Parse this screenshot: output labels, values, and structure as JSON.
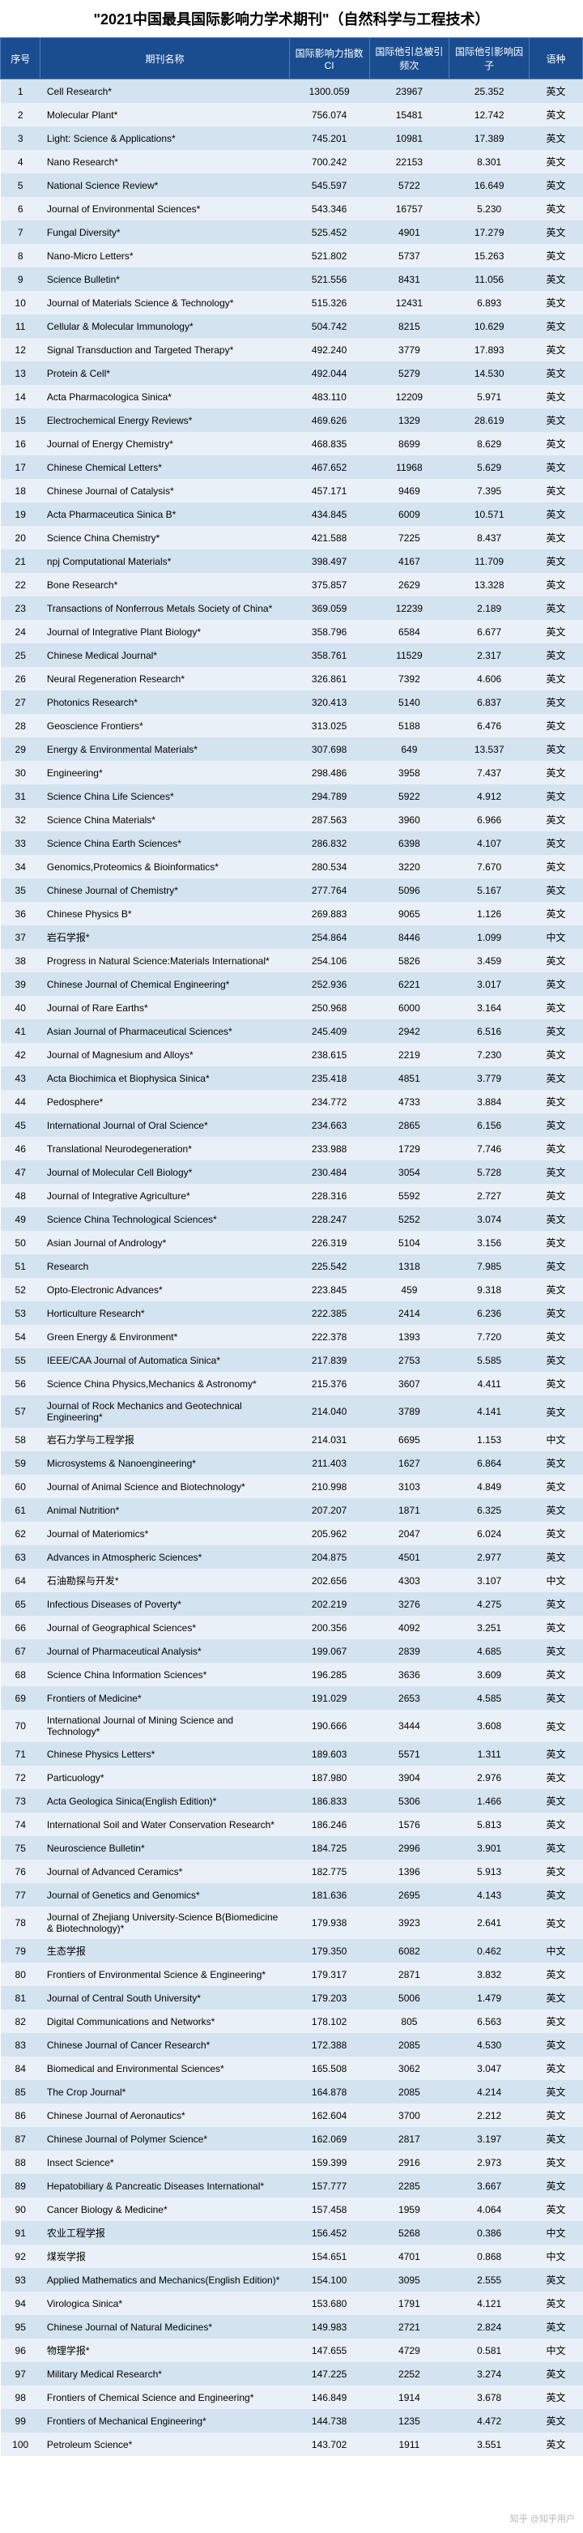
{
  "title": "\"2021中国最具国际影响力学术期刊\"（自然科学与工程技术）",
  "headers": {
    "idx": "序号",
    "name": "期刊名称",
    "ci": "国际影响力指数CI",
    "cited": "国际他引总被引频次",
    "if": "国际他引影响因子",
    "lang": "语种"
  },
  "watermark": "知乎 @知乎用户",
  "rows": [
    {
      "idx": 1,
      "name": "Cell Research*",
      "ci": "1300.059",
      "cited": "23967",
      "if": "25.352",
      "lang": "英文"
    },
    {
      "idx": 2,
      "name": "Molecular Plant*",
      "ci": "756.074",
      "cited": "15481",
      "if": "12.742",
      "lang": "英文"
    },
    {
      "idx": 3,
      "name": "Light: Science & Applications*",
      "ci": "745.201",
      "cited": "10981",
      "if": "17.389",
      "lang": "英文"
    },
    {
      "idx": 4,
      "name": "Nano Research*",
      "ci": "700.242",
      "cited": "22153",
      "if": "8.301",
      "lang": "英文"
    },
    {
      "idx": 5,
      "name": "National Science Review*",
      "ci": "545.597",
      "cited": "5722",
      "if": "16.649",
      "lang": "英文"
    },
    {
      "idx": 6,
      "name": "Journal of Environmental Sciences*",
      "ci": "543.346",
      "cited": "16757",
      "if": "5.230",
      "lang": "英文"
    },
    {
      "idx": 7,
      "name": "Fungal Diversity*",
      "ci": "525.452",
      "cited": "4901",
      "if": "17.279",
      "lang": "英文"
    },
    {
      "idx": 8,
      "name": "Nano-Micro Letters*",
      "ci": "521.802",
      "cited": "5737",
      "if": "15.263",
      "lang": "英文"
    },
    {
      "idx": 9,
      "name": "Science Bulletin*",
      "ci": "521.556",
      "cited": "8431",
      "if": "11.056",
      "lang": "英文"
    },
    {
      "idx": 10,
      "name": "Journal of Materials Science & Technology*",
      "ci": "515.326",
      "cited": "12431",
      "if": "6.893",
      "lang": "英文"
    },
    {
      "idx": 11,
      "name": "Cellular & Molecular Immunology*",
      "ci": "504.742",
      "cited": "8215",
      "if": "10.629",
      "lang": "英文"
    },
    {
      "idx": 12,
      "name": "Signal Transduction and Targeted Therapy*",
      "ci": "492.240",
      "cited": "3779",
      "if": "17.893",
      "lang": "英文"
    },
    {
      "idx": 13,
      "name": "Protein & Cell*",
      "ci": "492.044",
      "cited": "5279",
      "if": "14.530",
      "lang": "英文"
    },
    {
      "idx": 14,
      "name": "Acta Pharmacologica Sinica*",
      "ci": "483.110",
      "cited": "12209",
      "if": "5.971",
      "lang": "英文"
    },
    {
      "idx": 15,
      "name": "Electrochemical Energy Reviews*",
      "ci": "469.626",
      "cited": "1329",
      "if": "28.619",
      "lang": "英文"
    },
    {
      "idx": 16,
      "name": "Journal of Energy Chemistry*",
      "ci": "468.835",
      "cited": "8699",
      "if": "8.629",
      "lang": "英文"
    },
    {
      "idx": 17,
      "name": "Chinese Chemical Letters*",
      "ci": "467.652",
      "cited": "11968",
      "if": "5.629",
      "lang": "英文"
    },
    {
      "idx": 18,
      "name": "Chinese Journal of Catalysis*",
      "ci": "457.171",
      "cited": "9469",
      "if": "7.395",
      "lang": "英文"
    },
    {
      "idx": 19,
      "name": "Acta Pharmaceutica Sinica B*",
      "ci": "434.845",
      "cited": "6009",
      "if": "10.571",
      "lang": "英文"
    },
    {
      "idx": 20,
      "name": "Science China Chemistry*",
      "ci": "421.588",
      "cited": "7225",
      "if": "8.437",
      "lang": "英文"
    },
    {
      "idx": 21,
      "name": "npj Computational Materials*",
      "ci": "398.497",
      "cited": "4167",
      "if": "11.709",
      "lang": "英文"
    },
    {
      "idx": 22,
      "name": "Bone Research*",
      "ci": "375.857",
      "cited": "2629",
      "if": "13.328",
      "lang": "英文"
    },
    {
      "idx": 23,
      "name": "Transactions of Nonferrous Metals Society of China*",
      "ci": "369.059",
      "cited": "12239",
      "if": "2.189",
      "lang": "英文"
    },
    {
      "idx": 24,
      "name": "Journal of Integrative Plant Biology*",
      "ci": "358.796",
      "cited": "6584",
      "if": "6.677",
      "lang": "英文"
    },
    {
      "idx": 25,
      "name": "Chinese Medical Journal*",
      "ci": "358.761",
      "cited": "11529",
      "if": "2.317",
      "lang": "英文"
    },
    {
      "idx": 26,
      "name": "Neural Regeneration Research*",
      "ci": "326.861",
      "cited": "7392",
      "if": "4.606",
      "lang": "英文"
    },
    {
      "idx": 27,
      "name": "Photonics Research*",
      "ci": "320.413",
      "cited": "5140",
      "if": "6.837",
      "lang": "英文"
    },
    {
      "idx": 28,
      "name": "Geoscience Frontiers*",
      "ci": "313.025",
      "cited": "5188",
      "if": "6.476",
      "lang": "英文"
    },
    {
      "idx": 29,
      "name": "Energy & Environmental Materials*",
      "ci": "307.698",
      "cited": "649",
      "if": "13.537",
      "lang": "英文"
    },
    {
      "idx": 30,
      "name": "Engineering*",
      "ci": "298.486",
      "cited": "3958",
      "if": "7.437",
      "lang": "英文"
    },
    {
      "idx": 31,
      "name": "Science China Life Sciences*",
      "ci": "294.789",
      "cited": "5922",
      "if": "4.912",
      "lang": "英文"
    },
    {
      "idx": 32,
      "name": "Science China Materials*",
      "ci": "287.563",
      "cited": "3960",
      "if": "6.966",
      "lang": "英文"
    },
    {
      "idx": 33,
      "name": "Science China Earth Sciences*",
      "ci": "286.832",
      "cited": "6398",
      "if": "4.107",
      "lang": "英文"
    },
    {
      "idx": 34,
      "name": "Genomics,Proteomics & Bioinformatics*",
      "ci": "280.534",
      "cited": "3220",
      "if": "7.670",
      "lang": "英文"
    },
    {
      "idx": 35,
      "name": "Chinese Journal of Chemistry*",
      "ci": "277.764",
      "cited": "5096",
      "if": "5.167",
      "lang": "英文"
    },
    {
      "idx": 36,
      "name": "Chinese Physics B*",
      "ci": "269.883",
      "cited": "9065",
      "if": "1.126",
      "lang": "英文"
    },
    {
      "idx": 37,
      "name": "岩石学报*",
      "ci": "254.864",
      "cited": "8446",
      "if": "1.099",
      "lang": "中文"
    },
    {
      "idx": 38,
      "name": "Progress in Natural Science:Materials International*",
      "ci": "254.106",
      "cited": "5826",
      "if": "3.459",
      "lang": "英文"
    },
    {
      "idx": 39,
      "name": "Chinese Journal of Chemical Engineering*",
      "ci": "252.936",
      "cited": "6221",
      "if": "3.017",
      "lang": "英文"
    },
    {
      "idx": 40,
      "name": "Journal of Rare Earths*",
      "ci": "250.968",
      "cited": "6000",
      "if": "3.164",
      "lang": "英文"
    },
    {
      "idx": 41,
      "name": "Asian Journal of Pharmaceutical Sciences*",
      "ci": "245.409",
      "cited": "2942",
      "if": "6.516",
      "lang": "英文"
    },
    {
      "idx": 42,
      "name": "Journal of Magnesium and Alloys*",
      "ci": "238.615",
      "cited": "2219",
      "if": "7.230",
      "lang": "英文"
    },
    {
      "idx": 43,
      "name": "Acta Biochimica et Biophysica Sinica*",
      "ci": "235.418",
      "cited": "4851",
      "if": "3.779",
      "lang": "英文"
    },
    {
      "idx": 44,
      "name": "Pedosphere*",
      "ci": "234.772",
      "cited": "4733",
      "if": "3.884",
      "lang": "英文"
    },
    {
      "idx": 45,
      "name": "International Journal of Oral Science*",
      "ci": "234.663",
      "cited": "2865",
      "if": "6.156",
      "lang": "英文"
    },
    {
      "idx": 46,
      "name": "Translational Neurodegeneration*",
      "ci": "233.988",
      "cited": "1729",
      "if": "7.746",
      "lang": "英文"
    },
    {
      "idx": 47,
      "name": "Journal of Molecular Cell Biology*",
      "ci": "230.484",
      "cited": "3054",
      "if": "5.728",
      "lang": "英文"
    },
    {
      "idx": 48,
      "name": "Journal of Integrative Agriculture*",
      "ci": "228.316",
      "cited": "5592",
      "if": "2.727",
      "lang": "英文"
    },
    {
      "idx": 49,
      "name": "Science China Technological Sciences*",
      "ci": "228.247",
      "cited": "5252",
      "if": "3.074",
      "lang": "英文"
    },
    {
      "idx": 50,
      "name": "Asian Journal of Andrology*",
      "ci": "226.319",
      "cited": "5104",
      "if": "3.156",
      "lang": "英文"
    },
    {
      "idx": 51,
      "name": "Research",
      "ci": "225.542",
      "cited": "1318",
      "if": "7.985",
      "lang": "英文"
    },
    {
      "idx": 52,
      "name": "Opto-Electronic Advances*",
      "ci": "223.845",
      "cited": "459",
      "if": "9.318",
      "lang": "英文"
    },
    {
      "idx": 53,
      "name": "Horticulture Research*",
      "ci": "222.385",
      "cited": "2414",
      "if": "6.236",
      "lang": "英文"
    },
    {
      "idx": 54,
      "name": "Green Energy & Environment*",
      "ci": "222.378",
      "cited": "1393",
      "if": "7.720",
      "lang": "英文"
    },
    {
      "idx": 55,
      "name": "IEEE/CAA Journal of Automatica Sinica*",
      "ci": "217.839",
      "cited": "2753",
      "if": "5.585",
      "lang": "英文"
    },
    {
      "idx": 56,
      "name": "Science China Physics,Mechanics & Astronomy*",
      "ci": "215.376",
      "cited": "3607",
      "if": "4.411",
      "lang": "英文"
    },
    {
      "idx": 57,
      "name": "Journal of Rock Mechanics and Geotechnical Engineering*",
      "ci": "214.040",
      "cited": "3789",
      "if": "4.141",
      "lang": "英文"
    },
    {
      "idx": 58,
      "name": "岩石力学与工程学报",
      "ci": "214.031",
      "cited": "6695",
      "if": "1.153",
      "lang": "中文"
    },
    {
      "idx": 59,
      "name": "Microsystems & Nanoengineering*",
      "ci": "211.403",
      "cited": "1627",
      "if": "6.864",
      "lang": "英文"
    },
    {
      "idx": 60,
      "name": "Journal of Animal Science and Biotechnology*",
      "ci": "210.998",
      "cited": "3103",
      "if": "4.849",
      "lang": "英文"
    },
    {
      "idx": 61,
      "name": "Animal Nutrition*",
      "ci": "207.207",
      "cited": "1871",
      "if": "6.325",
      "lang": "英文"
    },
    {
      "idx": 62,
      "name": "Journal of Materiomics*",
      "ci": "205.962",
      "cited": "2047",
      "if": "6.024",
      "lang": "英文"
    },
    {
      "idx": 63,
      "name": "Advances in Atmospheric Sciences*",
      "ci": "204.875",
      "cited": "4501",
      "if": "2.977",
      "lang": "英文"
    },
    {
      "idx": 64,
      "name": "石油勘探与开发*",
      "ci": "202.656",
      "cited": "4303",
      "if": "3.107",
      "lang": "中文"
    },
    {
      "idx": 65,
      "name": "Infectious Diseases of Poverty*",
      "ci": "202.219",
      "cited": "3276",
      "if": "4.275",
      "lang": "英文"
    },
    {
      "idx": 66,
      "name": "Journal of Geographical Sciences*",
      "ci": "200.356",
      "cited": "4092",
      "if": "3.251",
      "lang": "英文"
    },
    {
      "idx": 67,
      "name": "Journal of Pharmaceutical Analysis*",
      "ci": "199.067",
      "cited": "2839",
      "if": "4.685",
      "lang": "英文"
    },
    {
      "idx": 68,
      "name": "Science China Information Sciences*",
      "ci": "196.285",
      "cited": "3636",
      "if": "3.609",
      "lang": "英文"
    },
    {
      "idx": 69,
      "name": "Frontiers of Medicine*",
      "ci": "191.029",
      "cited": "2653",
      "if": "4.585",
      "lang": "英文"
    },
    {
      "idx": 70,
      "name": "International Journal of Mining Science and Technology*",
      "ci": "190.666",
      "cited": "3444",
      "if": "3.608",
      "lang": "英文"
    },
    {
      "idx": 71,
      "name": "Chinese Physics Letters*",
      "ci": "189.603",
      "cited": "5571",
      "if": "1.311",
      "lang": "英文"
    },
    {
      "idx": 72,
      "name": "Particuology*",
      "ci": "187.980",
      "cited": "3904",
      "if": "2.976",
      "lang": "英文"
    },
    {
      "idx": 73,
      "name": "Acta Geologica Sinica(English Edition)*",
      "ci": "186.833",
      "cited": "5306",
      "if": "1.466",
      "lang": "英文"
    },
    {
      "idx": 74,
      "name": "International Soil and Water Conservation Research*",
      "ci": "186.246",
      "cited": "1576",
      "if": "5.813",
      "lang": "英文"
    },
    {
      "idx": 75,
      "name": "Neuroscience Bulletin*",
      "ci": "184.725",
      "cited": "2996",
      "if": "3.901",
      "lang": "英文"
    },
    {
      "idx": 76,
      "name": "Journal of Advanced Ceramics*",
      "ci": "182.775",
      "cited": "1396",
      "if": "5.913",
      "lang": "英文"
    },
    {
      "idx": 77,
      "name": "Journal of Genetics and Genomics*",
      "ci": "181.636",
      "cited": "2695",
      "if": "4.143",
      "lang": "英文"
    },
    {
      "idx": 78,
      "name": "Journal of Zhejiang University-Science B(Biomedicine & Biotechnology)*",
      "ci": "179.938",
      "cited": "3923",
      "if": "2.641",
      "lang": "英文"
    },
    {
      "idx": 79,
      "name": "生态学报",
      "ci": "179.350",
      "cited": "6082",
      "if": "0.462",
      "lang": "中文"
    },
    {
      "idx": 80,
      "name": "Frontiers of Environmental Science & Engineering*",
      "ci": "179.317",
      "cited": "2871",
      "if": "3.832",
      "lang": "英文"
    },
    {
      "idx": 81,
      "name": "Journal of Central South University*",
      "ci": "179.203",
      "cited": "5006",
      "if": "1.479",
      "lang": "英文"
    },
    {
      "idx": 82,
      "name": "Digital Communications and Networks*",
      "ci": "178.102",
      "cited": "805",
      "if": "6.563",
      "lang": "英文"
    },
    {
      "idx": 83,
      "name": "Chinese Journal of Cancer Research*",
      "ci": "172.388",
      "cited": "2085",
      "if": "4.530",
      "lang": "英文"
    },
    {
      "idx": 84,
      "name": "Biomedical and Environmental Sciences*",
      "ci": "165.508",
      "cited": "3062",
      "if": "3.047",
      "lang": "英文"
    },
    {
      "idx": 85,
      "name": "The Crop Journal*",
      "ci": "164.878",
      "cited": "2085",
      "if": "4.214",
      "lang": "英文"
    },
    {
      "idx": 86,
      "name": "Chinese Journal of Aeronautics*",
      "ci": "162.604",
      "cited": "3700",
      "if": "2.212",
      "lang": "英文"
    },
    {
      "idx": 87,
      "name": "Chinese Journal of Polymer Science*",
      "ci": "162.069",
      "cited": "2817",
      "if": "3.197",
      "lang": "英文"
    },
    {
      "idx": 88,
      "name": "Insect Science*",
      "ci": "159.399",
      "cited": "2916",
      "if": "2.973",
      "lang": "英文"
    },
    {
      "idx": 89,
      "name": "Hepatobiliary & Pancreatic Diseases International*",
      "ci": "157.777",
      "cited": "2285",
      "if": "3.667",
      "lang": "英文"
    },
    {
      "idx": 90,
      "name": "Cancer Biology & Medicine*",
      "ci": "157.458",
      "cited": "1959",
      "if": "4.064",
      "lang": "英文"
    },
    {
      "idx": 91,
      "name": "农业工程学报",
      "ci": "156.452",
      "cited": "5268",
      "if": "0.386",
      "lang": "中文"
    },
    {
      "idx": 92,
      "name": "煤炭学报",
      "ci": "154.651",
      "cited": "4701",
      "if": "0.868",
      "lang": "中文"
    },
    {
      "idx": 93,
      "name": "Applied Mathematics and Mechanics(English Edition)*",
      "ci": "154.100",
      "cited": "3095",
      "if": "2.555",
      "lang": "英文"
    },
    {
      "idx": 94,
      "name": "Virologica Sinica*",
      "ci": "153.680",
      "cited": "1791",
      "if": "4.121",
      "lang": "英文"
    },
    {
      "idx": 95,
      "name": "Chinese Journal of Natural Medicines*",
      "ci": "149.983",
      "cited": "2721",
      "if": "2.824",
      "lang": "英文"
    },
    {
      "idx": 96,
      "name": "物理学报*",
      "ci": "147.655",
      "cited": "4729",
      "if": "0.581",
      "lang": "中文"
    },
    {
      "idx": 97,
      "name": "Military Medical Research*",
      "ci": "147.225",
      "cited": "2252",
      "if": "3.274",
      "lang": "英文"
    },
    {
      "idx": 98,
      "name": "Frontiers of Chemical Science and Engineering*",
      "ci": "146.849",
      "cited": "1914",
      "if": "3.678",
      "lang": "英文"
    },
    {
      "idx": 99,
      "name": "Frontiers of Mechanical Engineering*",
      "ci": "144.738",
      "cited": "1235",
      "if": "4.472",
      "lang": "英文"
    },
    {
      "idx": 100,
      "name": "Petroleum Science*",
      "ci": "143.702",
      "cited": "1911",
      "if": "3.551",
      "lang": "英文"
    }
  ]
}
